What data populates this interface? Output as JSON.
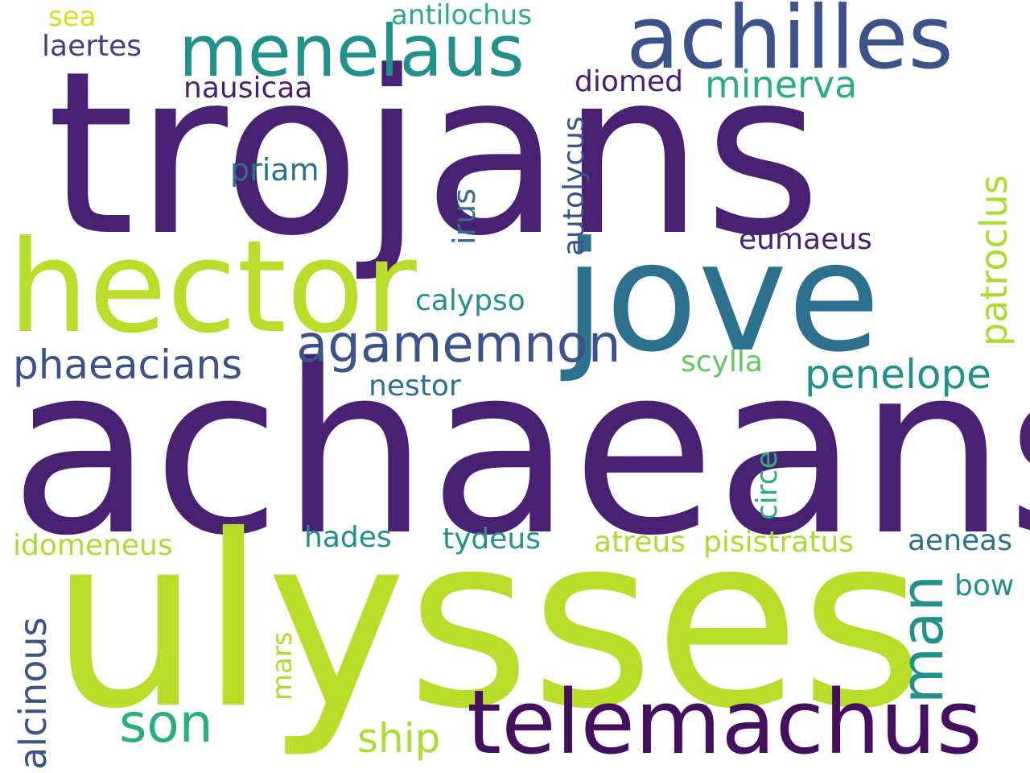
{
  "palette": {
    "dark_purple": "#482173",
    "deep_purple": "#440f5e",
    "slate_blue": "#3b528b",
    "steel_blue": "#2c728e",
    "teal": "#21918c",
    "sea_green": "#28ae80",
    "light_green": "#5ec962",
    "yellow_green": "#addc30",
    "lime": "#b8de29",
    "dark_indigo": "#433e85"
  },
  "words": {
    "trojans": {
      "text": "trojans",
      "color": "#482173"
    },
    "achaeans": {
      "text": "achaeans",
      "color": "#482173"
    },
    "ulysses": {
      "text": "ulysses",
      "color": "#b8de29"
    },
    "hector": {
      "text": "hector",
      "color": "#b8de29"
    },
    "jove": {
      "text": "jove",
      "color": "#2c728e"
    },
    "achilles": {
      "text": "achilles",
      "color": "#3b528b"
    },
    "menelaus": {
      "text": "menelaus",
      "color": "#21918c"
    },
    "telemachus": {
      "text": "telemachus",
      "color": "#440f5e"
    },
    "man": {
      "text": "man",
      "color": "#21918c"
    },
    "agamemnon": {
      "text": "agamemnon",
      "color": "#3b528b"
    },
    "son": {
      "text": "son",
      "color": "#28ae80"
    },
    "phaeacians": {
      "text": "phaeacians",
      "color": "#3b528b"
    },
    "penelope": {
      "text": "penelope",
      "color": "#21918c"
    },
    "minerva": {
      "text": "minerva",
      "color": "#28ae80"
    },
    "patroclus": {
      "text": "patroclus",
      "color": "#addc30"
    },
    "alcinous": {
      "text": "alcinous",
      "color": "#3b528b"
    },
    "ship": {
      "text": "ship",
      "color": "#addc30"
    },
    "antilochus": {
      "text": "antilochus",
      "color": "#28ae80"
    },
    "laertes": {
      "text": "laertes",
      "color": "#433e85"
    },
    "sea": {
      "text": "sea",
      "color": "#d4e21a"
    },
    "nausicaa": {
      "text": "nausicaa",
      "color": "#482173"
    },
    "diomed": {
      "text": "diomed",
      "color": "#482173"
    },
    "priam": {
      "text": "priam",
      "color": "#2c728e"
    },
    "autolycus": {
      "text": "autolycus",
      "color": "#3b528b"
    },
    "irus": {
      "text": "irus",
      "color": "#2c728e"
    },
    "eumaeus": {
      "text": "eumaeus",
      "color": "#482173"
    },
    "calypso": {
      "text": "calypso",
      "color": "#21918c"
    },
    "scylla": {
      "text": "scylla",
      "color": "#5ec962"
    },
    "nestor": {
      "text": "nestor",
      "color": "#2c728e"
    },
    "circe": {
      "text": "circe",
      "color": "#28ae80"
    },
    "hades": {
      "text": "hades",
      "color": "#21918c"
    },
    "tydeus": {
      "text": "tydeus",
      "color": "#21918c"
    },
    "idomeneus": {
      "text": "idomeneus",
      "color": "#addc30"
    },
    "atreus": {
      "text": "atreus",
      "color": "#addc30"
    },
    "pisistratus": {
      "text": "pisistratus",
      "color": "#addc30"
    },
    "aeneas": {
      "text": "aeneas",
      "color": "#2c728e"
    },
    "bow": {
      "text": "bow",
      "color": "#21918c"
    },
    "mars": {
      "text": "mars",
      "color": "#addc30"
    }
  }
}
